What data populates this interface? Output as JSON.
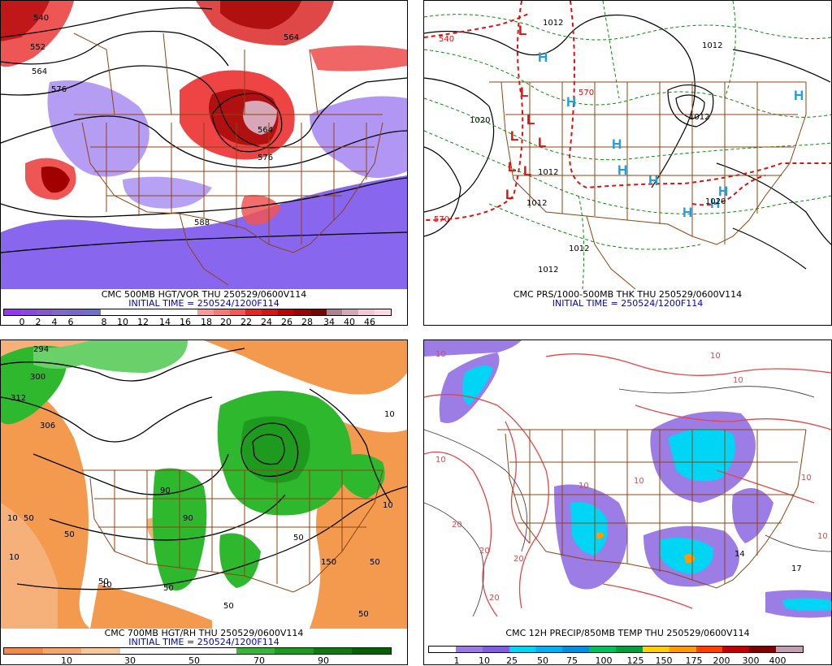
{
  "panels": [
    {
      "line1": "CMC 500MB HGT/VOR THU 250529/0600V114",
      "line2": "INITIAL TIME = 250524/1200F114",
      "colorbar": {
        "labels": [
          "0",
          "2",
          "4",
          "6",
          "8",
          "10",
          "12",
          "14",
          "16",
          "18",
          "20",
          "22",
          "24",
          "26",
          "28",
          "34",
          "40",
          "46"
        ],
        "colors": [
          "#9933ff",
          "#8e44e6",
          "#8555d6",
          "#7f66d0",
          "#ffffff",
          "#ffffff",
          "#ffffff",
          "#ff9999",
          "#ff7777",
          "#ff5555",
          "#ee2222",
          "#dd1111",
          "#c00000",
          "#a00000",
          "#7f0000",
          "#b07f8f",
          "#d7a7b7",
          "#f7c7d7"
        ]
      },
      "contour_labels": [
        "540",
        "552",
        "564",
        "576",
        "588",
        "564",
        "576",
        "564"
      ]
    },
    {
      "line1": "CMC PRS/1000-500MB THK THU 250529/0600V114",
      "line2": "INITIAL TIME = 250524/1200F114",
      "symbols_H": [
        "H",
        "H",
        "H",
        "H",
        "H",
        "H",
        "H",
        "H",
        "H"
      ],
      "symbols_L": [
        "L",
        "L",
        "L",
        "L",
        "L",
        "L",
        "L",
        "L"
      ],
      "contour_labels": [
        "1012",
        "1012",
        "1020",
        "1012",
        "1012",
        "1012",
        "1012",
        "1020",
        "570",
        "540",
        "570",
        "1012"
      ]
    },
    {
      "line1": "CMC 700MB HGT/RH THU 250529/0600V114",
      "line2": "INITIAL TIME = 250524/1200F114",
      "colorbar": {
        "labels": [
          "10",
          "30",
          "50",
          "70",
          "90"
        ],
        "colors": [
          "#f08c46",
          "#f4a86c",
          "#f8c79a",
          "#ffffff",
          "#ffffff",
          "#ffffff",
          "#3cb43c",
          "#1e9a1e",
          "#0f7a0f",
          "#066006"
        ]
      },
      "contour_labels": [
        "294",
        "300",
        "306",
        "312",
        "10",
        "50",
        "50",
        "90",
        "90",
        "50",
        "10",
        "50",
        "50",
        "50",
        "150",
        "10",
        "50",
        "50",
        "10",
        "10"
      ]
    },
    {
      "line1": "CMC 12H PRECIP/850MB TEMP THU 250529/0600V114",
      "colorbar": {
        "labels": [
          "1",
          "10",
          "25",
          "50",
          "75",
          "100",
          "125",
          "150",
          "175",
          "200",
          "300",
          "400"
        ],
        "colors": [
          "#ffffff",
          "#9b7be0",
          "#7f5fe0",
          "#00d5f5",
          "#00b0f0",
          "#0090e0",
          "#00c060",
          "#00a040",
          "#ffd000",
          "#ff9a00",
          "#ff4000",
          "#c00000",
          "#7f0000",
          "#c0a0b0"
        ]
      },
      "contour_labels": [
        "10",
        "10",
        "10",
        "20",
        "20",
        "20",
        "20",
        "10",
        "10",
        "10",
        "10",
        "10",
        "17",
        "14"
      ]
    }
  ],
  "colors": {
    "border_brown": "#8b4513",
    "vort_purple": "#8866ee",
    "vort_red": "#dd2020",
    "rh_orange": "#f39a4f",
    "rh_green": "#2eb82e",
    "thk_red": "#e01010",
    "thk_green": "#0a8a0a",
    "high_blue": "#1ea0e0",
    "low_red": "#e01010",
    "precip_purple": "#9c7de6",
    "precip_cyan": "#00d5f5",
    "temp_red": "#e04848"
  }
}
